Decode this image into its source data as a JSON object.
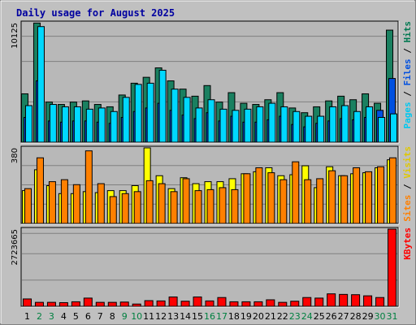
{
  "title": "Daily usage for August 2025",
  "chart_data": [
    {
      "type": "bar",
      "panel": "pages-files-hits",
      "categories": [
        "1",
        "2",
        "3",
        "4",
        "5",
        "6",
        "7",
        "8",
        "9",
        "10",
        "11",
        "12",
        "13",
        "14",
        "15",
        "16",
        "17",
        "18",
        "19",
        "20",
        "21",
        "22",
        "23",
        "24",
        "25",
        "26",
        "27",
        "28",
        "29",
        "30",
        "31"
      ],
      "ymax_label": "10125",
      "ymax": 10125,
      "right_label": [
        {
          "text": "Pages",
          "color": "#00c8f0"
        },
        {
          "text": " / ",
          "color": "#000000"
        },
        {
          "text": "Files",
          "color": "#0050e0"
        },
        {
          "text": " / ",
          "color": "#000000"
        },
        {
          "text": "Hits",
          "color": "#007850"
        }
      ],
      "series": [
        {
          "name": "Hits",
          "color": "#1a8060",
          "values": [
            4100,
            10100,
            3400,
            3200,
            3400,
            3500,
            3200,
            3000,
            4000,
            5000,
            5500,
            6300,
            5200,
            4500,
            3900,
            4800,
            3400,
            4200,
            3300,
            3200,
            3600,
            4200,
            2900,
            2500,
            3000,
            3500,
            3900,
            3600,
            4100,
            3300,
            9500
          ]
        },
        {
          "name": "Files",
          "color": "#0050e0",
          "values": [
            2100,
            5200,
            1800,
            1700,
            1800,
            1800,
            1700,
            1600,
            2100,
            2600,
            2900,
            3300,
            2700,
            2300,
            2000,
            2500,
            1800,
            2200,
            1700,
            1700,
            1900,
            2200,
            1500,
            1300,
            1600,
            1800,
            2000,
            1900,
            2100,
            2700,
            5400
          ]
        },
        {
          "name": "Pages",
          "color": "#00d8ff",
          "values": [
            3100,
            9800,
            3200,
            3000,
            3000,
            2800,
            2900,
            2600,
            3800,
            4900,
            5000,
            6100,
            4500,
            3800,
            2900,
            3600,
            2800,
            2700,
            2800,
            3000,
            3300,
            3000,
            2600,
            2200,
            2200,
            3000,
            3100,
            2600,
            3000,
            2100,
            2400
          ]
        }
      ]
    },
    {
      "type": "bar",
      "panel": "visits-sites",
      "categories": [
        "1",
        "2",
        "3",
        "4",
        "5",
        "6",
        "7",
        "8",
        "9",
        "10",
        "11",
        "12",
        "13",
        "14",
        "15",
        "16",
        "17",
        "18",
        "19",
        "20",
        "21",
        "22",
        "23",
        "24",
        "25",
        "26",
        "27",
        "28",
        "29",
        "30",
        "31"
      ],
      "ymax_label": "380",
      "ymax": 380,
      "right_label": [
        {
          "text": "Sites",
          "color": "#ff8000"
        },
        {
          "text": " / ",
          "color": "#000000"
        },
        {
          "text": "Visits",
          "color": "#e0c800"
        }
      ],
      "series": [
        {
          "name": "Visits",
          "color": "#ffff00",
          "values": [
            165,
            270,
            190,
            150,
            150,
            160,
            155,
            165,
            165,
            190,
            380,
            240,
            175,
            230,
            200,
            210,
            210,
            225,
            250,
            260,
            280,
            240,
            245,
            290,
            180,
            285,
            240,
            250,
            255,
            280,
            320
          ]
        },
        {
          "name": "Sites",
          "color": "#ff8000",
          "values": [
            175,
            330,
            210,
            220,
            195,
            365,
            200,
            135,
            150,
            160,
            215,
            200,
            160,
            225,
            165,
            170,
            180,
            170,
            250,
            280,
            255,
            220,
            310,
            220,
            225,
            265,
            240,
            280,
            260,
            285,
            330
          ]
        }
      ]
    },
    {
      "type": "bar",
      "panel": "kbytes",
      "categories": [
        "1",
        "2",
        "3",
        "4",
        "5",
        "6",
        "7",
        "8",
        "9",
        "10",
        "11",
        "12",
        "13",
        "14",
        "15",
        "16",
        "17",
        "18",
        "19",
        "20",
        "21",
        "22",
        "23",
        "24",
        "25",
        "26",
        "27",
        "28",
        "29",
        "30",
        "31"
      ],
      "ymax_label": "2723665",
      "ymax": 2723665,
      "right_label": [
        {
          "text": "KBytes",
          "color": "#ff0000"
        }
      ],
      "series": [
        {
          "name": "KBytes",
          "color": "#ff0000",
          "values": [
            260000,
            140000,
            140000,
            130000,
            160000,
            290000,
            140000,
            140000,
            150000,
            80000,
            200000,
            190000,
            330000,
            180000,
            330000,
            190000,
            310000,
            160000,
            160000,
            160000,
            230000,
            140000,
            180000,
            310000,
            290000,
            440000,
            420000,
            410000,
            370000,
            310000,
            2723665
          ]
        }
      ]
    }
  ],
  "x_label_colors": [
    "#000000",
    "#008040",
    "#008040",
    "#000000",
    "#000000",
    "#000000",
    "#000000",
    "#000000",
    "#008040",
    "#008040",
    "#000000",
    "#000000",
    "#000000",
    "#000000",
    "#000000",
    "#008040",
    "#008040",
    "#000000",
    "#000000",
    "#000000",
    "#000000",
    "#000000",
    "#008040",
    "#008040",
    "#000000",
    "#000000",
    "#000000",
    "#000000",
    "#000000",
    "#008040",
    "#008040"
  ]
}
